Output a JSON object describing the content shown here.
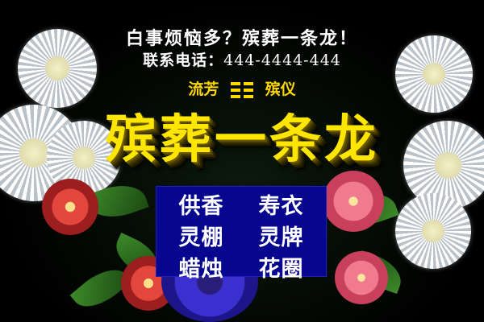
{
  "header": {
    "headline": "白事烦恼多？殡葬一条龙！",
    "contact_label": "联系电话：",
    "phone": "444-4444-444"
  },
  "brand": {
    "left": "流芳",
    "right": "殡仪",
    "mark_icon": "trigram-mark-icon"
  },
  "title": "殡葬一条龙",
  "services": [
    "供香",
    "寿衣",
    "灵棚",
    "灵牌",
    "蜡烛",
    "花圈"
  ],
  "colors": {
    "background": "#000000",
    "headline_text": "#ffffff",
    "brand_yellow": "#ffd800",
    "title_yellow": "#ffe600",
    "service_box": "#06068f"
  }
}
